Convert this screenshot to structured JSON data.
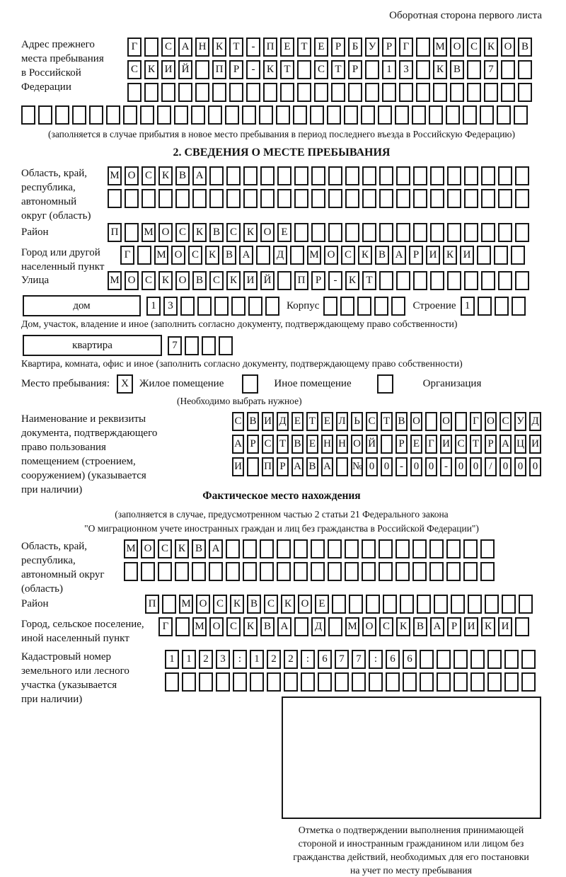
{
  "colors": {
    "ink": "#161616",
    "background": "#ffffff"
  },
  "header": {
    "note": "Оборотная сторона первого листа"
  },
  "prev_address": {
    "label_lines": [
      "Адрес прежнего",
      "места пребывания",
      "в Российской",
      "Федерации"
    ],
    "row1": "Г САНКТ-ПЕТЕРБУРГ МОСКОВ",
    "row2": "СКИЙ ПР-КТ СТР 13 КВ 7",
    "row3": "",
    "row4": "",
    "note": "(заполняется в случае прибытия в новое место пребывания в период последнего въезда в Российскую Федерацию)"
  },
  "section2": {
    "title": "2. СВЕДЕНИЯ О МЕСТЕ ПРЕБЫВАНИЯ",
    "oblast": {
      "label_lines": [
        "Область, край,",
        "республика,",
        "автономный",
        "округ (область)"
      ],
      "row1": "МОСКВА",
      "row2": ""
    },
    "raion": {
      "label": "Район",
      "row": "П МОСКВСКОЕ"
    },
    "gorod": {
      "label_lines": [
        "Город или другой",
        "населенный пункт"
      ],
      "row": "Г МОСКВА Д МОСКВАРИКИ"
    },
    "ulitsa": {
      "label": "Улица",
      "row": "МОСКОВСКИЙ ПР-КТ"
    },
    "dom": {
      "box_label": "дом",
      "cells": "13",
      "korpus_label": "Корпус",
      "korpus_cells": "",
      "stroenie_label": "Строение",
      "stroenie_cells": "1",
      "caption": "Дом, участок, владение и иное (заполнить согласно документу, подтверждающему право собственности)"
    },
    "kvartira": {
      "box_label": "квартира",
      "cells": "7",
      "caption": "Квартира, комната, офис и иное (заполнить согласно документу, подтверждающему право собственности)"
    },
    "place_type": {
      "label": "Место пребывания:",
      "options": [
        {
          "label": "Жилое помещение",
          "mark": "X"
        },
        {
          "label": "Иное помещение",
          "mark": ""
        },
        {
          "label": "Организация",
          "mark": ""
        }
      ],
      "note": "(Необходимо выбрать нужное)"
    },
    "doc": {
      "label_lines": [
        "Наименование и реквизиты",
        "документа, подтверждающего",
        "право пользования",
        "помещением (строением,",
        "сооружением) (указывается",
        "при наличии)"
      ],
      "row1": "СВИДЕТЕЛЬСТВО О ГОСУД",
      "row2": "АРСТВЕННОЙ РЕГИСТРАЦИ",
      "row3": "И ПРАВА №00-00-00/000"
    }
  },
  "fact": {
    "title": "Фактическое место нахождения",
    "note1": "(заполняется в случае, предусмотренном частью 2 статьи 21 Федерального закона",
    "note2": "\"О миграционном учете иностранных граждан и лиц без гражданства в Российской Федерации\")",
    "oblast": {
      "label_lines": [
        "Область, край,",
        "республика,",
        "автономный округ",
        "(область)"
      ],
      "row1": "МОСКВА",
      "row2": ""
    },
    "raion": {
      "label": "Район",
      "row": "П МОСКВСКОЕ"
    },
    "gorod": {
      "label_lines": [
        "Город, сельское поселение,",
        "иной населенный пункт"
      ],
      "row": "Г МОСКВА Д МОСКВАРИКИ"
    },
    "kadastr": {
      "label_lines": [
        "Кадастровый номер",
        "земельного или лесного",
        "участка (указывается",
        "при наличии)"
      ],
      "row1": "1123:122:677:66",
      "row2": ""
    }
  },
  "stamp": {
    "caption_lines": [
      "Отметка о подтверждении выполнения принимающей",
      "стороной и иностранным гражданином или лицом без",
      "гражданства действий, необходимых для его постановки",
      "на учет по месту пребывания"
    ]
  }
}
